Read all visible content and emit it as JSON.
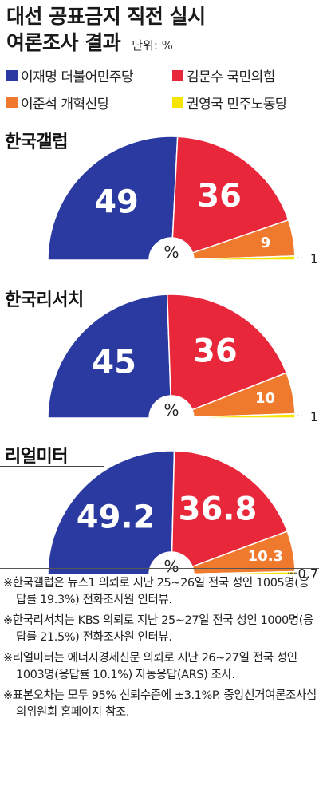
{
  "title_line1": "대선 공표금지 직전 실시",
  "title_line2": "여론조사 결과",
  "unit": "단위: %",
  "legend": [
    {
      "name": "이재명 더불어민주당",
      "color": "#2a3aa0"
    },
    {
      "name": "김문수 국민의힘",
      "color": "#e8283a"
    },
    {
      "name": "이준석 개혁신당",
      "color": "#ef7a2e"
    },
    {
      "name": "권영국 민주노동당",
      "color": "#f5e400"
    }
  ],
  "center_label": "%",
  "chart_data": [
    {
      "type": "pie",
      "title": "한국갤럽",
      "categories": [
        "이재명 더불어민주당",
        "김문수 국민의힘",
        "이준석 개혁신당",
        "권영국 민주노동당"
      ],
      "values": [
        49,
        36,
        9,
        1
      ],
      "labels": [
        "49",
        "36",
        "9",
        "1"
      ]
    },
    {
      "type": "pie",
      "title": "한국리서치",
      "categories": [
        "이재명 더불어민주당",
        "김문수 국민의힘",
        "이준석 개혁신당",
        "권영국 민주노동당"
      ],
      "values": [
        45,
        36,
        10,
        1
      ],
      "labels": [
        "45",
        "36",
        "10",
        "1"
      ]
    },
    {
      "type": "pie",
      "title": "리얼미터",
      "categories": [
        "이재명 더불어민주당",
        "김문수 국민의힘",
        "이준석 개혁신당",
        "권영국 민주노동당"
      ],
      "values": [
        49.2,
        36.8,
        10.3,
        0.7
      ],
      "labels": [
        "49.2",
        "36.8",
        "10.3",
        "0.7"
      ]
    }
  ],
  "notes": [
    "※한국갤럽은 뉴스1 의뢰로 지난 25~26일 전국 성인 1005명(응답률 19.3%) 전화조사원 인터뷰.",
    "※한국리서치는 KBS 의뢰로 지난 25~27일 전국 성인 1000명(응답률 21.5%) 전화조사원 인터뷰.",
    "※리얼미터는 에너지경제신문 의뢰로 지난 26~27일 전국 성인 1003명(응답률 10.1%) 자동응답(ARS) 조사.",
    "※표본오차는 모두 95% 신뢰수준에 ±3.1%P. 중앙선거여론조사심의위원회 홈페이지 참조."
  ]
}
